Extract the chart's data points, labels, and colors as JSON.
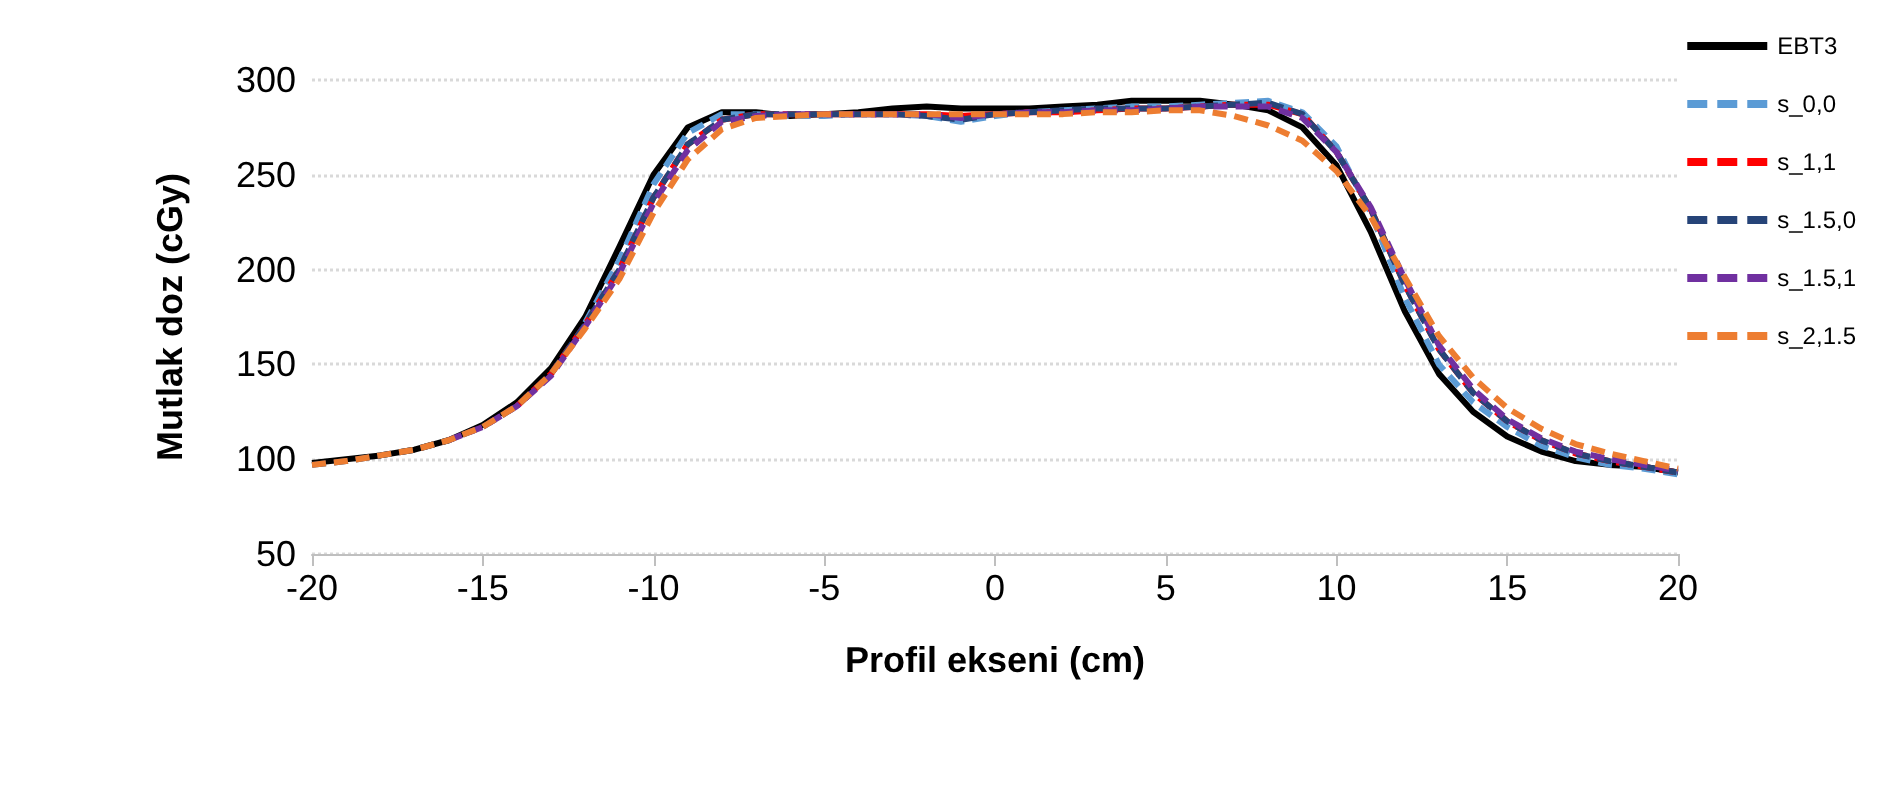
{
  "chart_data": {
    "type": "line",
    "xlabel": "Profil ekseni (cm)",
    "ylabel": "Mutlak doz (cGy)",
    "x": [
      -20,
      -19,
      -18,
      -17,
      -16,
      -15,
      -14,
      -13,
      -12,
      -11,
      -10,
      -9,
      -8,
      -7,
      -6,
      -5,
      -4,
      -3,
      -2,
      -1,
      0,
      1,
      2,
      3,
      4,
      5,
      6,
      7,
      8,
      9,
      10,
      11,
      12,
      13,
      14,
      15,
      16,
      17,
      18,
      19,
      20
    ],
    "series": [
      {
        "name": "EBT3",
        "color": "#000000",
        "line_style": "solid",
        "values": [
          98,
          100,
          102,
          105,
          110,
          118,
          130,
          148,
          175,
          212,
          250,
          275,
          283,
          283,
          281,
          282,
          283,
          285,
          286,
          285,
          285,
          285,
          286,
          287,
          289,
          289,
          289,
          287,
          284,
          275,
          255,
          220,
          178,
          145,
          125,
          112,
          104,
          99,
          97,
          96,
          93
        ]
      },
      {
        "name": "s_0,0",
        "color": "#5b9bd5",
        "line_style": "dashed",
        "values": [
          null,
          null,
          null,
          null,
          null,
          null,
          null,
          null,
          172,
          205,
          245,
          272,
          282,
          282,
          281,
          281,
          282,
          282,
          281,
          278,
          281,
          283,
          284,
          285,
          286,
          286,
          287,
          288,
          289,
          283,
          265,
          230,
          185,
          150,
          130,
          117,
          107,
          101,
          97,
          95,
          92
        ]
      },
      {
        "name": "s_1,1",
        "color": "#ff0000",
        "line_style": "dashed",
        "values": [
          null,
          null,
          null,
          null,
          null,
          null,
          128,
          145,
          171,
          200,
          238,
          266,
          279,
          282,
          282,
          282,
          282,
          282,
          282,
          281,
          282,
          283,
          283,
          284,
          285,
          285,
          286,
          287,
          287,
          282,
          262,
          232,
          192,
          158,
          135,
          120,
          110,
          103,
          99,
          96,
          93
        ]
      },
      {
        "name": "s_1.5,0",
        "color": "#264478",
        "line_style": "dashed",
        "values": [
          97,
          99,
          102,
          105,
          110,
          117,
          128,
          145,
          171,
          200,
          238,
          266,
          279,
          282,
          282,
          282,
          282,
          282,
          281,
          279,
          282,
          283,
          284,
          285,
          285,
          285,
          286,
          287,
          288,
          282,
          262,
          232,
          192,
          158,
          135,
          120,
          110,
          103,
          99,
          96,
          93
        ]
      },
      {
        "name": "s_1.5,1",
        "color": "#7030a0",
        "line_style": "dashed",
        "values": [
          null,
          null,
          null,
          null,
          110,
          117,
          128,
          144,
          170,
          198,
          235,
          263,
          278,
          281,
          282,
          282,
          282,
          282,
          282,
          280,
          282,
          283,
          283,
          284,
          284,
          285,
          286,
          286,
          286,
          280,
          262,
          233,
          195,
          160,
          137,
          121,
          111,
          104,
          100,
          97,
          94
        ]
      },
      {
        "name": "s_2,1.5",
        "color": "#ed7d31",
        "line_style": "dashed",
        "values": [
          97,
          99,
          102,
          105,
          110,
          117,
          128,
          145,
          169,
          195,
          230,
          258,
          274,
          280,
          281,
          282,
          282,
          282,
          282,
          282,
          282,
          282,
          282,
          283,
          283,
          284,
          284,
          281,
          276,
          268,
          252,
          228,
          196,
          165,
          143,
          127,
          116,
          108,
          103,
          99,
          95
        ]
      }
    ],
    "xlim": [
      -20,
      20
    ],
    "xticks": [
      -20,
      -15,
      -10,
      -5,
      0,
      5,
      10,
      15,
      20
    ],
    "ylim": [
      50,
      300
    ],
    "yticks": [
      50,
      100,
      150,
      200,
      250,
      300
    ],
    "grid": "y",
    "legend": "right",
    "marker": "none"
  }
}
